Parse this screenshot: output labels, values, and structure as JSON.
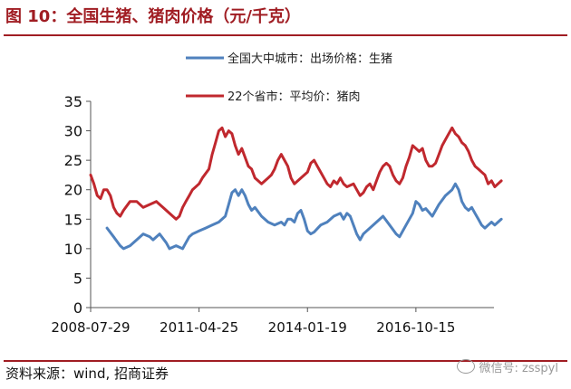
{
  "header": {
    "title": "图 10：全国生猪、猪肉价格（元/千克）"
  },
  "footer": {
    "source": "资料来源：wind, 招商证券"
  },
  "watermark": {
    "text": "微信号: zsspyl",
    "icon": "wechat-icon"
  },
  "colors": {
    "accent": "#a01d23",
    "blue": "#4f81bd",
    "red": "#c0282e",
    "axis": "#555555"
  },
  "chart_data": {
    "type": "line",
    "title": "图 10：全国生猪、猪肉价格（元/千克）",
    "xlabel": "",
    "ylabel": "",
    "ylim": [
      0,
      35
    ],
    "yticks": [
      0,
      5,
      10,
      15,
      20,
      25,
      30,
      35
    ],
    "xlim": [
      0,
      120
    ],
    "xticks": [
      {
        "label": "2008-07-29",
        "x": 0
      },
      {
        "label": "2011-04-25",
        "x": 33
      },
      {
        "label": "2014-01-19",
        "x": 66
      },
      {
        "label": "2016-10-15",
        "x": 99
      }
    ],
    "series": [
      {
        "name": "全国大中城市：出场价格：生猪",
        "color": "#4f81bd",
        "points": [
          [
            5,
            13.5
          ],
          [
            7,
            12
          ],
          [
            9,
            10.5
          ],
          [
            10,
            10
          ],
          [
            12,
            10.5
          ],
          [
            14,
            11.5
          ],
          [
            16,
            12.5
          ],
          [
            18,
            12
          ],
          [
            19,
            11.5
          ],
          [
            21,
            12.5
          ],
          [
            23,
            11
          ],
          [
            24,
            10
          ],
          [
            26,
            10.5
          ],
          [
            28,
            10
          ],
          [
            29,
            11
          ],
          [
            30,
            12
          ],
          [
            31,
            12.5
          ],
          [
            33,
            13
          ],
          [
            35,
            13.5
          ],
          [
            37,
            14
          ],
          [
            39,
            14.5
          ],
          [
            41,
            15.5
          ],
          [
            42,
            17.5
          ],
          [
            43,
            19.5
          ],
          [
            44,
            20
          ],
          [
            45,
            19
          ],
          [
            46,
            20
          ],
          [
            47,
            19
          ],
          [
            48,
            17.5
          ],
          [
            49,
            16.5
          ],
          [
            50,
            17
          ],
          [
            52,
            15.5
          ],
          [
            54,
            14.5
          ],
          [
            56,
            14
          ],
          [
            58,
            14.5
          ],
          [
            59,
            14
          ],
          [
            60,
            15
          ],
          [
            61,
            15
          ],
          [
            62,
            14.5
          ],
          [
            63,
            16
          ],
          [
            64,
            16.5
          ],
          [
            65,
            15
          ],
          [
            66,
            13
          ],
          [
            67,
            12.5
          ],
          [
            68,
            12.8
          ],
          [
            70,
            14
          ],
          [
            72,
            14.5
          ],
          [
            74,
            15.5
          ],
          [
            76,
            16
          ],
          [
            77,
            15
          ],
          [
            78,
            16
          ],
          [
            79,
            15.5
          ],
          [
            80,
            14
          ],
          [
            81,
            12.5
          ],
          [
            82,
            11.5
          ],
          [
            83,
            12.5
          ],
          [
            84,
            13
          ],
          [
            86,
            14
          ],
          [
            88,
            15
          ],
          [
            89,
            15.5
          ],
          [
            91,
            14
          ],
          [
            93,
            12.5
          ],
          [
            94,
            12
          ],
          [
            96,
            14
          ],
          [
            98,
            16
          ],
          [
            99,
            18
          ],
          [
            100,
            17.5
          ],
          [
            101,
            16.5
          ],
          [
            102,
            16.8
          ],
          [
            104,
            15.5
          ],
          [
            106,
            17.5
          ],
          [
            108,
            19
          ],
          [
            110,
            20
          ],
          [
            111,
            21
          ],
          [
            112,
            20
          ],
          [
            113,
            18
          ],
          [
            114,
            17
          ],
          [
            115,
            16.5
          ],
          [
            116,
            17
          ],
          [
            117,
            16
          ],
          [
            118,
            15
          ],
          [
            119,
            14
          ],
          [
            120,
            13.5
          ],
          [
            121,
            14
          ],
          [
            122,
            14.5
          ],
          [
            123,
            14
          ],
          [
            124,
            14.5
          ],
          [
            125,
            15
          ]
        ]
      },
      {
        "name": "22个省市：平均价：猪肉",
        "color": "#c0282e",
        "points": [
          [
            0,
            22.5
          ],
          [
            1,
            21
          ],
          [
            2,
            19
          ],
          [
            3,
            18.5
          ],
          [
            4,
            20
          ],
          [
            5,
            20
          ],
          [
            6,
            19
          ],
          [
            7,
            17
          ],
          [
            8,
            16
          ],
          [
            9,
            15.5
          ],
          [
            10,
            16.5
          ],
          [
            12,
            18
          ],
          [
            14,
            18
          ],
          [
            16,
            17
          ],
          [
            18,
            17.5
          ],
          [
            20,
            18
          ],
          [
            22,
            17
          ],
          [
            24,
            16
          ],
          [
            25,
            15.5
          ],
          [
            26,
            15
          ],
          [
            27,
            15.5
          ],
          [
            28,
            17
          ],
          [
            29,
            18
          ],
          [
            30,
            19
          ],
          [
            31,
            20
          ],
          [
            32,
            20.5
          ],
          [
            33,
            21
          ],
          [
            34,
            22
          ],
          [
            36,
            23.5
          ],
          [
            37,
            26
          ],
          [
            38,
            28
          ],
          [
            39,
            30
          ],
          [
            40,
            30.5
          ],
          [
            41,
            29
          ],
          [
            42,
            30
          ],
          [
            43,
            29.5
          ],
          [
            44,
            27.5
          ],
          [
            45,
            26
          ],
          [
            46,
            27
          ],
          [
            47,
            25.5
          ],
          [
            48,
            24
          ],
          [
            49,
            23.5
          ],
          [
            50,
            22
          ],
          [
            51,
            21.5
          ],
          [
            52,
            21
          ],
          [
            54,
            22
          ],
          [
            55,
            22.5
          ],
          [
            56,
            23.5
          ],
          [
            57,
            25
          ],
          [
            58,
            26
          ],
          [
            59,
            25
          ],
          [
            60,
            24
          ],
          [
            61,
            22
          ],
          [
            62,
            21
          ],
          [
            64,
            22
          ],
          [
            66,
            23
          ],
          [
            67,
            24.5
          ],
          [
            68,
            25
          ],
          [
            69,
            24
          ],
          [
            70,
            23
          ],
          [
            71,
            22
          ],
          [
            72,
            21
          ],
          [
            73,
            20.5
          ],
          [
            74,
            21.5
          ],
          [
            75,
            21
          ],
          [
            76,
            22
          ],
          [
            77,
            21
          ],
          [
            78,
            20.5
          ],
          [
            80,
            21
          ],
          [
            81,
            20
          ],
          [
            82,
            19
          ],
          [
            83,
            19.5
          ],
          [
            84,
            20.5
          ],
          [
            85,
            21
          ],
          [
            86,
            20
          ],
          [
            87,
            21.5
          ],
          [
            88,
            23
          ],
          [
            89,
            24
          ],
          [
            90,
            24.5
          ],
          [
            91,
            24
          ],
          [
            92,
            22.5
          ],
          [
            93,
            21.5
          ],
          [
            94,
            21
          ],
          [
            95,
            22
          ],
          [
            96,
            24
          ],
          [
            97,
            25.5
          ],
          [
            98,
            27.5
          ],
          [
            99,
            27
          ],
          [
            100,
            26.5
          ],
          [
            101,
            27
          ],
          [
            102,
            25
          ],
          [
            103,
            24
          ],
          [
            104,
            24
          ],
          [
            105,
            24.5
          ],
          [
            106,
            26
          ],
          [
            107,
            27.5
          ],
          [
            108,
            28.5
          ],
          [
            109,
            29.5
          ],
          [
            110,
            30.5
          ],
          [
            111,
            29.5
          ],
          [
            112,
            29
          ],
          [
            113,
            28
          ],
          [
            114,
            27.5
          ],
          [
            115,
            26.5
          ],
          [
            116,
            25
          ],
          [
            117,
            24
          ],
          [
            118,
            23.5
          ],
          [
            119,
            23
          ],
          [
            120,
            22.5
          ],
          [
            121,
            21
          ],
          [
            122,
            21.5
          ],
          [
            123,
            20.5
          ],
          [
            124,
            21
          ],
          [
            125,
            21.5
          ]
        ]
      }
    ]
  }
}
